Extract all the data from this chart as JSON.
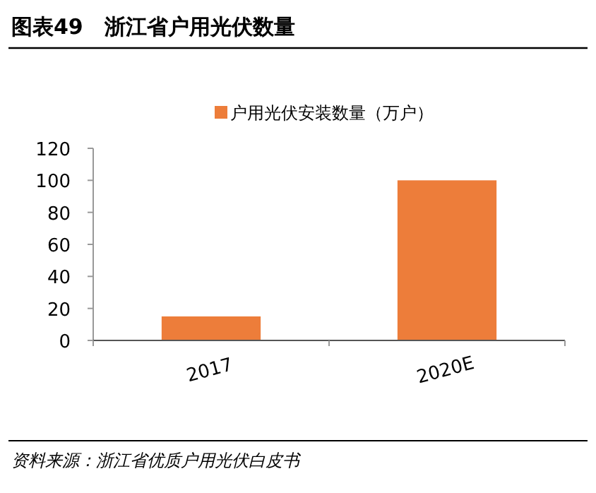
{
  "chart_data": {
    "type": "bar",
    "title": "图表49　浙江省户用光伏数量",
    "categories": [
      "2017",
      "2020E"
    ],
    "series": [
      {
        "name": "户用光伏安装数量（万户）",
        "color": "#ed7d3a",
        "values": [
          15,
          100
        ]
      }
    ],
    "ylim": [
      0,
      120
    ],
    "yticks": [
      0,
      20,
      40,
      60,
      80,
      100,
      120
    ],
    "grid": false,
    "legend": "top",
    "annotations": [
      "资料来源：浙江省优质户用光伏白皮书"
    ]
  }
}
